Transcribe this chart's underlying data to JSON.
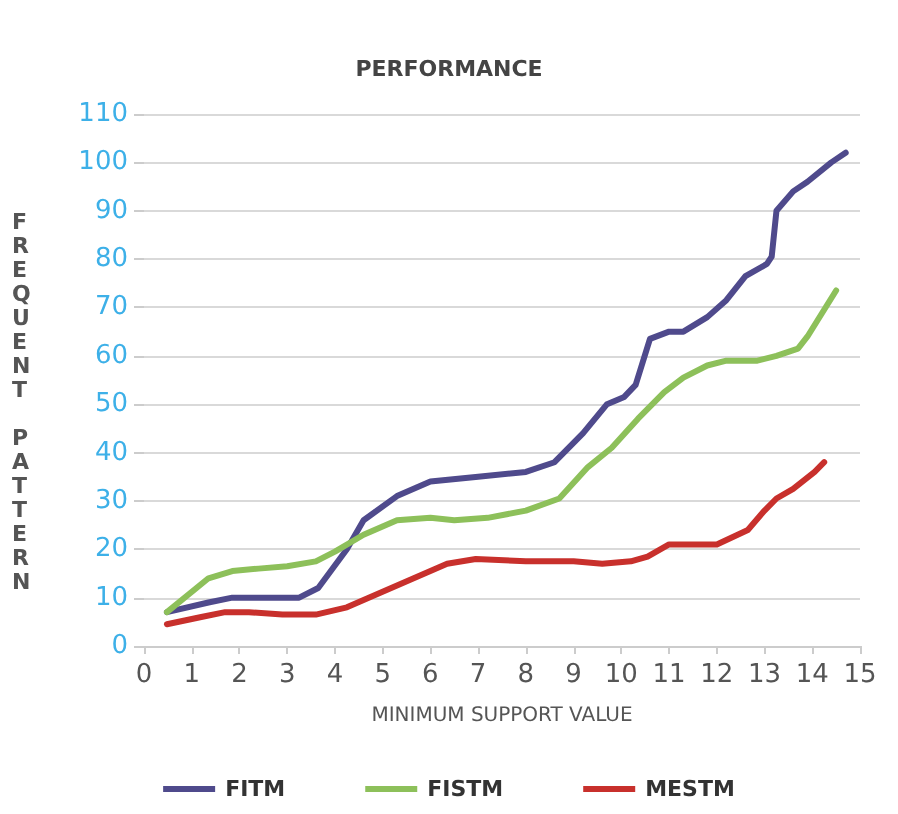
{
  "chart_data": {
    "type": "line",
    "title": "PERFORMANCE",
    "xlabel": "MINIMUM SUPPORT VALUE",
    "ylabel": "FREQUENT PATTERN",
    "xlim": [
      0,
      15
    ],
    "xticks": [
      0,
      1,
      2,
      3,
      4,
      5,
      6,
      7,
      8,
      9,
      10,
      11,
      12,
      13,
      14,
      15
    ],
    "ylim": [
      0,
      110
    ],
    "yticks": [
      0,
      10,
      20,
      30,
      40,
      50,
      60,
      70,
      80,
      90,
      100,
      110
    ],
    "grid": "y",
    "legend": "bottom",
    "marker": "none",
    "line_style": "solid",
    "series": [
      {
        "name": "FITM",
        "color": "#4f4a8c",
        "x": [
          0.48,
          1.35,
          1.85,
          2.9,
          3.25,
          3.65,
          4.25,
          4.6,
          5.3,
          6.0,
          7.0,
          8.0,
          8.6,
          9.2,
          9.7,
          10.06,
          10.3,
          10.6,
          11.0,
          11.3,
          11.8,
          12.2,
          12.6,
          13.05,
          13.15,
          13.25,
          13.6,
          13.9,
          14.4,
          14.7
        ],
        "values": [
          7,
          9,
          10,
          10,
          10,
          12,
          20,
          26,
          31,
          34,
          35,
          36,
          38,
          44,
          50,
          51.5,
          54,
          63.5,
          65,
          65,
          68,
          71.5,
          76.5,
          79,
          80.5,
          90,
          94,
          96,
          100,
          102
        ]
      },
      {
        "name": "FISTM",
        "color": "#8dc05a",
        "x": [
          0.48,
          1.35,
          1.85,
          2.4,
          3.0,
          3.6,
          4.0,
          4.6,
          5.3,
          6.0,
          6.5,
          7.2,
          8.0,
          8.7,
          9.3,
          9.8,
          10.35,
          10.9,
          11.3,
          11.8,
          12.2,
          12.85,
          13.25,
          13.7,
          13.9,
          14.5
        ],
        "values": [
          7,
          14,
          15.5,
          16,
          16.5,
          17.5,
          19.5,
          23,
          26,
          26.5,
          26,
          26.5,
          28,
          30.5,
          37,
          41,
          47,
          52.5,
          55.5,
          58,
          59,
          59,
          60,
          61.5,
          64,
          73.5
        ]
      },
      {
        "name": "MESTM",
        "color": "#c8302c",
        "x": [
          0.48,
          1.2,
          1.7,
          2.2,
          2.9,
          3.6,
          4.25,
          4.95,
          5.65,
          6.35,
          6.95,
          8.0,
          9.0,
          9.6,
          10.2,
          10.55,
          11.0,
          11.6,
          12.0,
          12.65,
          13.0,
          13.25,
          13.6,
          14.05,
          14.25
        ],
        "values": [
          4.5,
          6,
          7,
          7,
          6.5,
          6.5,
          8,
          11,
          14,
          17,
          18,
          17.5,
          17.5,
          17,
          17.5,
          18.5,
          21,
          21,
          21,
          24,
          28,
          30.5,
          32.5,
          36,
          38
        ]
      }
    ]
  }
}
